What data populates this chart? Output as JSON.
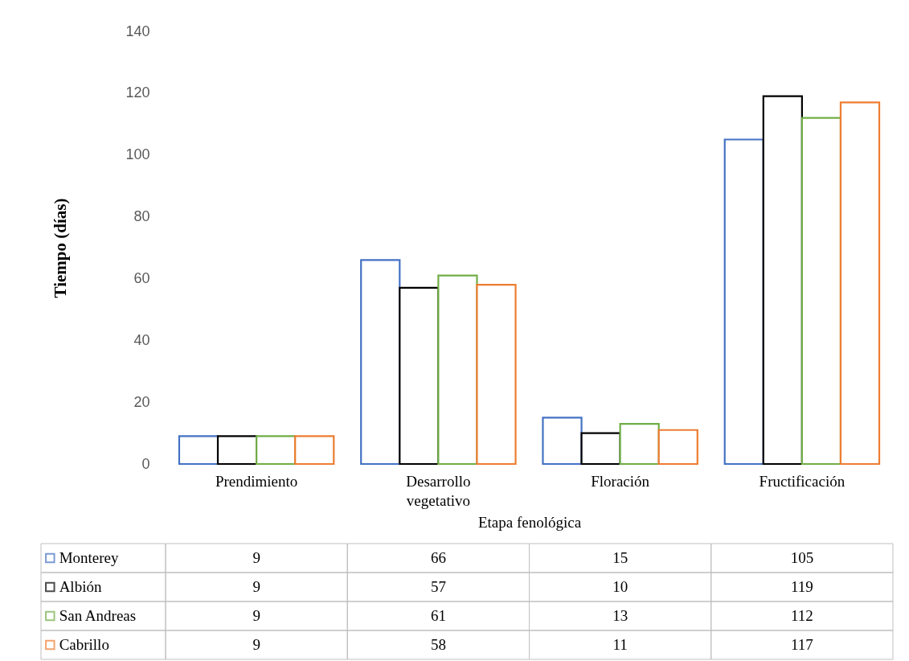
{
  "chart_data": {
    "type": "bar",
    "xlabel": "Etapa fenológica",
    "ylabel": "Tiempo (días)",
    "categories": [
      "Prendimiento",
      "Desarrollo vegetativo",
      "Floración",
      "Fructificación"
    ],
    "series": [
      {
        "name": "Monterey",
        "color": "#4472c4",
        "values": [
          9,
          66,
          15,
          105
        ]
      },
      {
        "name": "Albión",
        "color": "#000000",
        "values": [
          9,
          57,
          10,
          119
        ]
      },
      {
        "name": "San Andreas",
        "color": "#70ad47",
        "values": [
          9,
          61,
          13,
          112
        ]
      },
      {
        "name": "Cabrillo",
        "color": "#ed7d31",
        "values": [
          9,
          58,
          11,
          117
        ]
      }
    ],
    "ylim": [
      0,
      140
    ],
    "yticks": [
      0,
      20,
      40,
      60,
      80,
      100,
      120,
      140
    ],
    "grid": false,
    "legend": "bottom",
    "data_labels": true
  }
}
